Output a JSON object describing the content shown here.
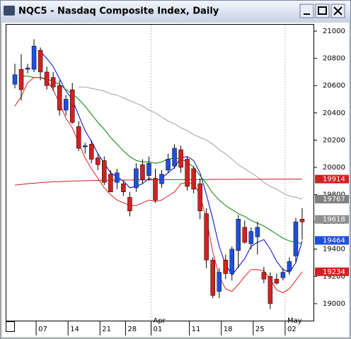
{
  "chart_data": {
    "type": "candlestick",
    "title": "NQC5 - Nasdaq Composite Index, Daily",
    "categories": [
      null,
      null,
      null,
      null,
      "07",
      null,
      null,
      null,
      null,
      "14",
      null,
      null,
      null,
      null,
      "21",
      null,
      null,
      null,
      "28",
      null,
      null,
      null,
      "01",
      null,
      null,
      null,
      null,
      null,
      "11",
      null,
      null,
      null,
      null,
      "18",
      null,
      null,
      null,
      null,
      "25",
      null,
      null,
      null,
      null,
      "02",
      null,
      null
    ],
    "month_categories": [
      null,
      null,
      null,
      null,
      null,
      null,
      null,
      null,
      null,
      null,
      null,
      null,
      null,
      null,
      null,
      null,
      null,
      null,
      null,
      null,
      null,
      null,
      "Apr",
      null,
      null,
      null,
      null,
      null,
      null,
      null,
      null,
      null,
      null,
      null,
      null,
      null,
      null,
      null,
      null,
      null,
      null,
      null,
      null,
      "May",
      null,
      null
    ],
    "open": [
      20610,
      20720,
      20720,
      20720,
      20860,
      20700,
      20660,
      20600,
      20420,
      20570,
      20300,
      20150,
      20170,
      20070,
      20050,
      19950,
      19890,
      19880,
      19780,
      19850,
      20020,
      19940,
      19920,
      19880,
      19980,
      20010,
      20130,
      20060,
      19990,
      19880,
      19660,
      19320,
      19090,
      19320,
      19220,
      19390,
      19560,
      19440,
      19490,
      19230,
      19200,
      19180,
      19190,
      19240,
      19350,
      19620
    ],
    "high": [
      20760,
      20830,
      20760,
      20940,
      20880,
      20740,
      20700,
      20640,
      20530,
      20620,
      20340,
      20180,
      20200,
      20100,
      20080,
      19980,
      19990,
      19900,
      19820,
      20030,
      20060,
      20080,
      19990,
      19980,
      20100,
      20170,
      20160,
      20080,
      20010,
      19920,
      19700,
      19340,
      19260,
      19360,
      19420,
      19650,
      19610,
      19560,
      19600,
      19270,
      19230,
      19220,
      19260,
      19340,
      19630,
      19700
    ],
    "low": [
      20580,
      20490,
      20690,
      20700,
      20640,
      20570,
      20560,
      20380,
      20380,
      20320,
      20120,
      20100,
      20030,
      19980,
      19870,
      19820,
      19840,
      19790,
      19640,
      19820,
      19880,
      19900,
      19740,
      19850,
      19960,
      19990,
      19960,
      19830,
      19810,
      19620,
      19260,
      19040,
      19040,
      19180,
      19170,
      19260,
      19440,
      19400,
      19360,
      19150,
      18960,
      19140,
      19170,
      19210,
      19300,
      19470
    ],
    "close": [
      20680,
      20570,
      20730,
      20890,
      20700,
      20600,
      20590,
      20420,
      20500,
      20330,
      20140,
      20160,
      20060,
      20020,
      19890,
      19820,
      19960,
      19820,
      19680,
      19990,
      19910,
      20030,
      19760,
      19950,
      20060,
      20140,
      20000,
      19860,
      19840,
      19680,
      19320,
      19060,
      19230,
      19220,
      19400,
      19620,
      19450,
      19530,
      19560,
      19180,
      19000,
      19150,
      19230,
      19310,
      19600,
      19600
    ],
    "up_color": "#1f4fe0",
    "down_color": "#d42020",
    "lines": [
      {
        "color": "#0000cc",
        "values": [
          null,
          null,
          null,
          null,
          20850,
          20800,
          20740,
          20650,
          20560,
          20500,
          20380,
          20270,
          20190,
          20100,
          20030,
          19960,
          19930,
          19900,
          19850,
          19860,
          19880,
          19920,
          19900,
          19920,
          19960,
          20000,
          20070,
          20080,
          20050,
          19960,
          19800,
          19620,
          19420,
          19290,
          19210,
          19270,
          19330,
          19420,
          19450,
          19470,
          19400,
          19310,
          19250,
          19230,
          19300,
          19460
        ]
      },
      {
        "color": "#008000",
        "values": [
          null,
          20670,
          20670,
          20660,
          20660,
          20650,
          20630,
          20610,
          20570,
          20540,
          20500,
          20450,
          20390,
          20330,
          20280,
          20220,
          20170,
          20120,
          20080,
          20050,
          20040,
          20040,
          20030,
          20040,
          20060,
          20070,
          20060,
          20040,
          20000,
          19940,
          19880,
          19810,
          19760,
          19720,
          19690,
          19660,
          19640,
          19610,
          19590,
          19570,
          19540,
          19510,
          19480,
          19460,
          19450,
          19440
        ]
      },
      {
        "color": "#a0a0a0",
        "values": [
          null,
          null,
          null,
          null,
          null,
          null,
          null,
          null,
          null,
          null,
          20590,
          20590,
          20580,
          20570,
          20560,
          20540,
          20530,
          20510,
          20490,
          20470,
          20450,
          20420,
          20400,
          20370,
          20340,
          20320,
          20290,
          20270,
          20240,
          20220,
          20200,
          20170,
          20130,
          20100,
          20060,
          20020,
          19990,
          19960,
          19930,
          19890,
          19860,
          19840,
          19810,
          19790,
          19780,
          19767
        ]
      },
      {
        "color": "#c02020",
        "values": [
          19870,
          19875,
          19880,
          19884,
          19888,
          19891,
          19894,
          19896,
          19898,
          19900,
          19901,
          19902,
          19903,
          19904,
          19905,
          19906,
          19906,
          19907,
          19907,
          19908,
          19908,
          19909,
          19909,
          19909,
          19910,
          19910,
          19910,
          19911,
          19911,
          19911,
          19911,
          19912,
          19912,
          19912,
          19912,
          19913,
          19913,
          19913,
          19913,
          19913,
          19914,
          19914,
          19914,
          19914,
          19914,
          19914
        ]
      },
      {
        "color": "#e02020",
        "values": [
          20450,
          20520,
          20620,
          20660,
          20660,
          20640,
          20570,
          20470,
          20360,
          20290,
          20180,
          20070,
          19990,
          19920,
          19850,
          19800,
          19760,
          19740,
          19720,
          19720,
          19740,
          19760,
          19750,
          19760,
          19790,
          19820,
          19880,
          19890,
          19880,
          19800,
          19620,
          19380,
          19200,
          19110,
          19090,
          19140,
          19200,
          19250,
          19250,
          19240,
          19180,
          19100,
          19080,
          19110,
          19170,
          19234
        ]
      }
    ],
    "markers": [
      {
        "value": 19914,
        "color": "#d42020"
      },
      {
        "value": 19767,
        "color": "#808080"
      },
      {
        "value": 19618,
        "color": "#909090"
      },
      {
        "value": 19464,
        "color": "#1f4fe0"
      },
      {
        "value": 19234,
        "color": "#d42020"
      }
    ],
    "ylim": [
      18870,
      21047
    ],
    "yticks": [
      19000,
      19200,
      19400,
      19600,
      19800,
      20000,
      20200,
      20400,
      20600,
      20800,
      21000
    ]
  }
}
